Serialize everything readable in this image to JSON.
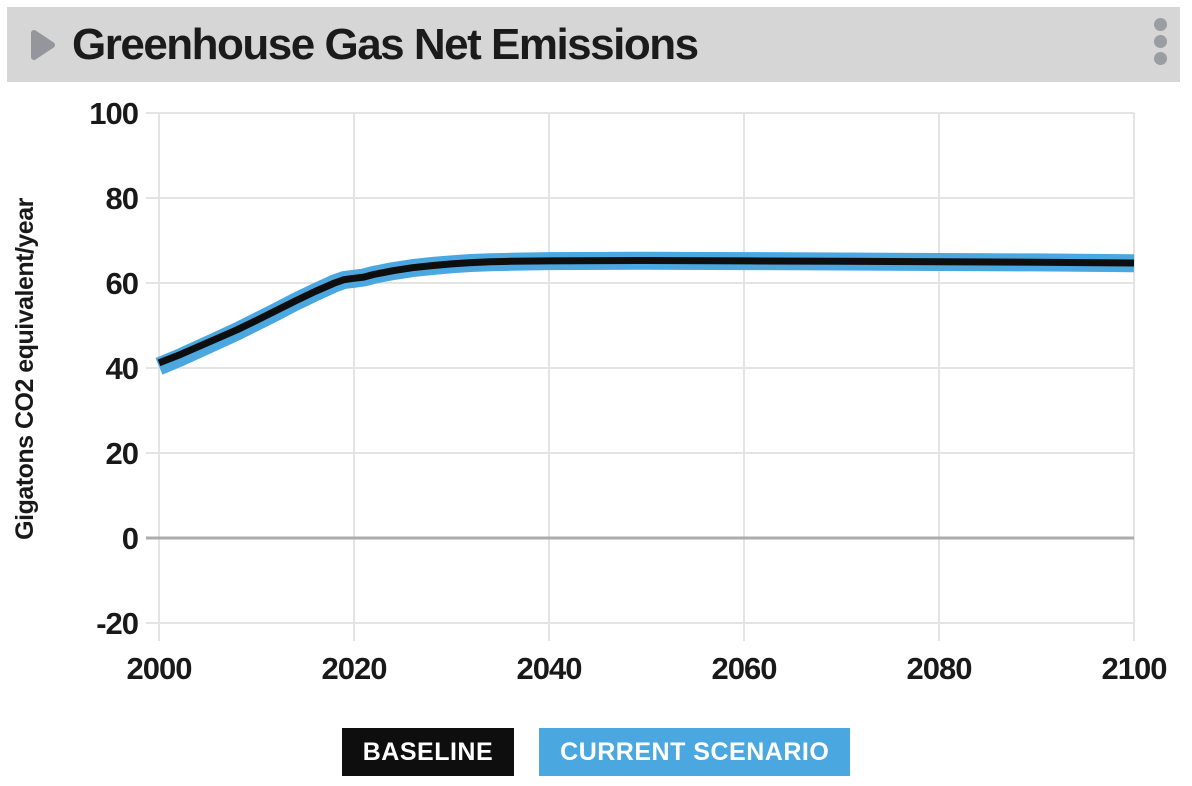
{
  "header": {
    "title": "Greenhouse Gas Net Emissions",
    "expand_icon": "right-triangle",
    "menu_icon": "kebab-vertical-dots"
  },
  "colors": {
    "header_bg": "#d6d6d6",
    "icon_gray": "#93979c",
    "dot_gray": "#9a9da1",
    "grid": "#e4e4e4",
    "zero_line": "#acacac",
    "baseline_black": "#0e0e0e",
    "scenario_blue": "#4ba7e0"
  },
  "chart_data": {
    "type": "line",
    "title": "Greenhouse Gas Net Emissions",
    "xlabel": "",
    "ylabel": "Gigatons CO2 equivalent/year",
    "xlim": [
      2000,
      2100
    ],
    "ylim": [
      -20,
      100
    ],
    "xticks": [
      2000,
      2020,
      2040,
      2060,
      2080,
      2100
    ],
    "yticks": [
      100,
      80,
      60,
      40,
      20,
      0,
      -20
    ],
    "grid": true,
    "zero_line": true,
    "legend_position": "bottom",
    "x": [
      2000,
      2002,
      2004,
      2006,
      2008,
      2010,
      2012,
      2014,
      2016,
      2018,
      2019,
      2020,
      2021,
      2022,
      2024,
      2026,
      2028,
      2030,
      2032,
      2034,
      2036,
      2040,
      2050,
      2060,
      2070,
      2080,
      2090,
      2100
    ],
    "series": [
      {
        "name": "Baseline",
        "label": "BASELINE",
        "color": "#0e0e0e",
        "stroke_width": 7,
        "values": [
          41.2,
          43.0,
          45.0,
          47.0,
          49.0,
          51.2,
          53.5,
          55.8,
          58.0,
          60.0,
          60.8,
          61.1,
          61.4,
          62.0,
          62.9,
          63.6,
          64.1,
          64.5,
          64.8,
          65.0,
          65.1,
          65.2,
          65.3,
          65.2,
          65.1,
          65.0,
          64.9,
          64.7
        ]
      },
      {
        "name": "Current Scenario",
        "label": "CURRENT SCENARIO",
        "color": "#4ba7e0",
        "stroke_width": 18,
        "values": [
          40.4,
          42.3,
          44.4,
          46.5,
          48.6,
          50.9,
          53.2,
          55.6,
          57.8,
          59.9,
          60.7,
          61.0,
          61.3,
          61.9,
          62.8,
          63.5,
          64.0,
          64.4,
          64.7,
          64.9,
          65.0,
          65.15,
          65.25,
          65.15,
          65.05,
          64.95,
          64.85,
          64.65
        ]
      }
    ]
  }
}
